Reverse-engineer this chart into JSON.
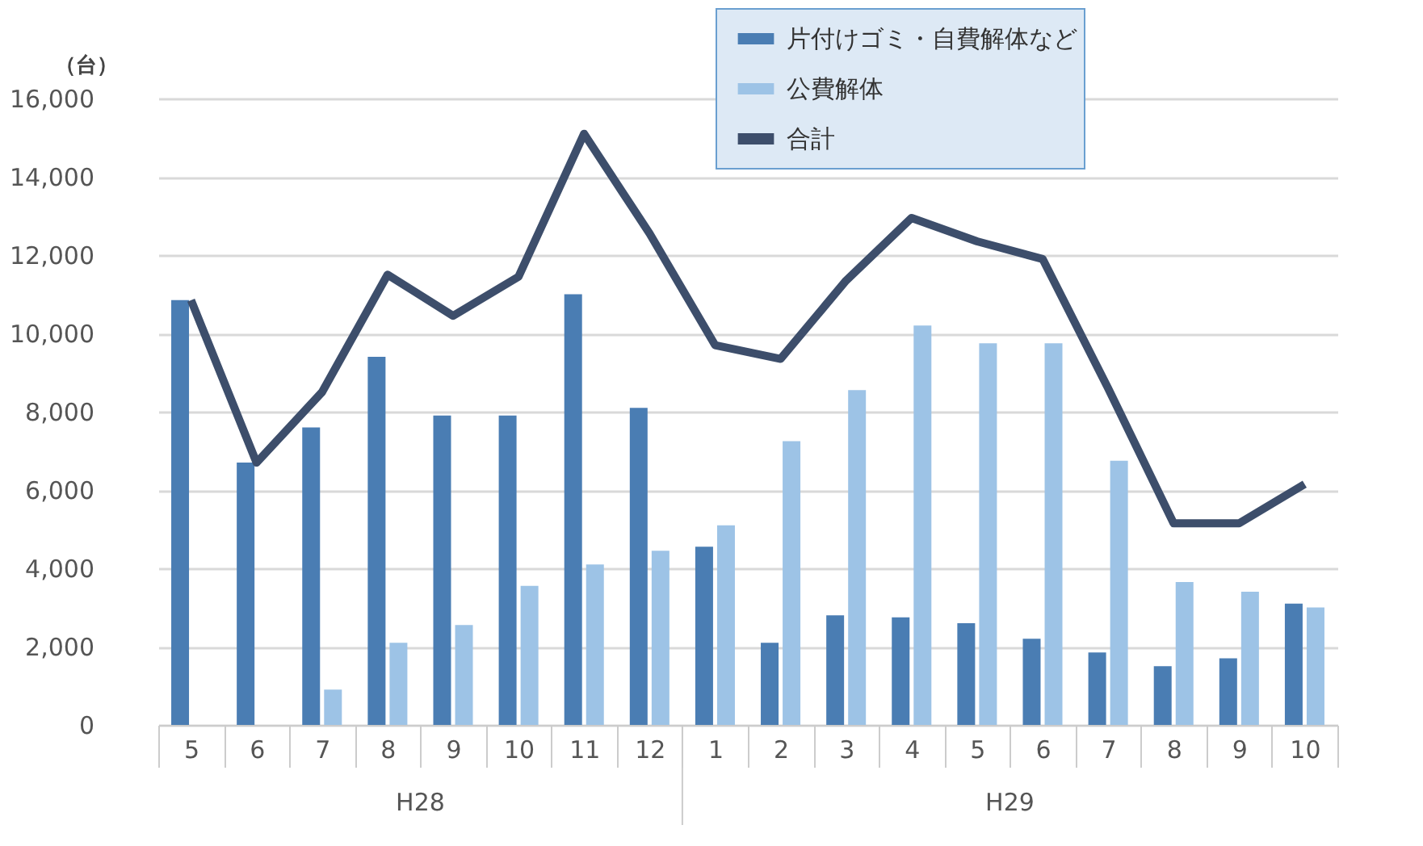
{
  "chart_data": {
    "type": "bar",
    "ylabel": "（台）",
    "categories": [
      "5",
      "6",
      "7",
      "8",
      "9",
      "10",
      "11",
      "12",
      "1",
      "2",
      "3",
      "4",
      "5",
      "6",
      "7",
      "8",
      "9",
      "10"
    ],
    "series": [
      {
        "name": "片付けゴミ・自費解体など",
        "color": "#4a7db3",
        "values": [
          10850,
          6700,
          7600,
          9400,
          7900,
          7900,
          11000,
          8100,
          4550,
          2100,
          2800,
          2750,
          2600,
          2200,
          1850,
          1500,
          1700,
          3100
        ]
      },
      {
        "name": "公費解体",
        "color": "#9dc3e6",
        "values": [
          null,
          null,
          900,
          2100,
          2550,
          3550,
          4100,
          4450,
          5100,
          7250,
          8550,
          10200,
          9750,
          9750,
          6750,
          3650,
          3400,
          3000
        ]
      },
      {
        "name": "合計",
        "type": "line",
        "color": "#3d4e6b",
        "values": [
          10850,
          6700,
          8500,
          11500,
          10450,
          11450,
          15100,
          12550,
          9700,
          9350,
          11350,
          12950,
          12350,
          11900,
          8600,
          5150,
          5150,
          6150
        ]
      }
    ],
    "ylim": [
      0,
      16000
    ],
    "yticks": [
      0,
      {
        "value": 2000,
        "label": "2,000"
      },
      {
        "value": 4000,
        "label": "4,000"
      },
      {
        "value": 6000,
        "label": "6,000"
      },
      {
        "value": 8000,
        "label": "8,000"
      },
      {
        "value": 10000,
        "label": "10,000"
      },
      {
        "value": 12000,
        "label": "12,000"
      },
      {
        "value": 14000,
        "label": "14,000"
      },
      {
        "value": 16000,
        "label": "16,000"
      }
    ],
    "annotations": [
      "H28",
      "H29"
    ],
    "grid": "y",
    "legend": "top right"
  }
}
